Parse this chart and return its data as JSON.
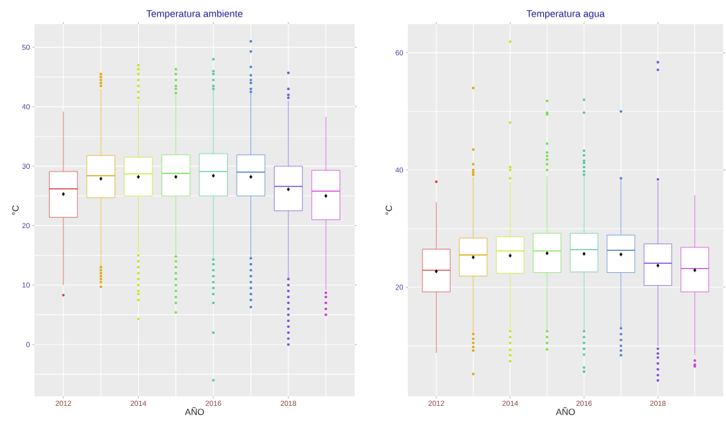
{
  "chart_data": [
    {
      "type": "box",
      "title": "Temperatura ambiente",
      "xlabel": "AÑO",
      "ylabel": "°C",
      "categories": [
        "2012",
        null,
        "2014",
        null,
        "2016",
        null,
        "2018",
        null
      ],
      "colors": [
        "#d93a3a",
        "#e0a800",
        "#c4e61a",
        "#70e04d",
        "#52c79a",
        "#4d7fd1",
        "#7a4dd6",
        "#cc33d6"
      ],
      "ylim": [
        -8.7,
        53.9
      ],
      "yticks": [
        0,
        10,
        20,
        30,
        40,
        50
      ],
      "grid": true,
      "boxes": [
        {
          "low": 10,
          "q1": 21.4,
          "median": 26.2,
          "q3": 29.1,
          "high": 39.2,
          "mean": 25.3,
          "outliers": [
            8.3
          ]
        },
        {
          "low": 13.2,
          "q1": 24.7,
          "median": 28.4,
          "q3": 31.8,
          "high": 43,
          "mean": 27.9,
          "outliers": [
            43.5,
            44,
            44.5,
            45,
            45.5,
            9.7,
            10.5,
            11,
            11.5,
            12,
            12.5,
            13
          ]
        },
        {
          "low": 15.5,
          "q1": 25.0,
          "median": 28.7,
          "q3": 31.5,
          "high": 41,
          "mean": 28.2,
          "outliers": [
            41.5,
            42.5,
            43.5,
            44.5,
            45.5,
            46.3,
            47,
            15,
            14,
            13,
            12,
            11,
            10,
            9,
            8.5,
            7.5,
            4.3
          ]
        },
        {
          "low": 15,
          "q1": 25.0,
          "median": 28.8,
          "q3": 31.9,
          "high": 42,
          "mean": 28.2,
          "outliers": [
            42.3,
            43,
            43.5,
            44.5,
            45.5,
            46.3,
            14.8,
            14,
            13,
            12,
            11,
            10,
            9,
            8,
            7,
            5.4
          ]
        },
        {
          "low": 14.5,
          "q1": 25.0,
          "median": 29.1,
          "q3": 32.1,
          "high": 43,
          "mean": 28.4,
          "outliers": [
            43,
            43.5,
            44.5,
            45.5,
            46,
            48,
            14.3,
            13.5,
            12.5,
            11.5,
            10.5,
            9.5,
            8.5,
            7,
            2,
            -6
          ]
        },
        {
          "low": 14.7,
          "q1": 25.0,
          "median": 29.0,
          "q3": 31.9,
          "high": 42.3,
          "mean": 28.2,
          "outliers": [
            42.5,
            43,
            44,
            44.5,
            45.3,
            46.7,
            49.3,
            51,
            14.5,
            13.5,
            12.5,
            11.5,
            10.5,
            9.5,
            8.5,
            7.5,
            6.3
          ]
        },
        {
          "low": 11.2,
          "q1": 22.5,
          "median": 26.6,
          "q3": 30.0,
          "high": 41,
          "mean": 26.1,
          "outliers": [
            41.5,
            42,
            43,
            45.7,
            11,
            10,
            9,
            8,
            7,
            6,
            5,
            4,
            3,
            2,
            1,
            0
          ]
        },
        {
          "low": 9.2,
          "q1": 21.0,
          "median": 25.8,
          "q3": 29.3,
          "high": 38.3,
          "mean": 25.0,
          "outliers": [
            8.7,
            8,
            7,
            6,
            5
          ]
        }
      ]
    },
    {
      "type": "box",
      "title": "Temperatura agua",
      "xlabel": "AÑO",
      "ylabel": "°C",
      "categories": [
        "2012",
        null,
        "2014",
        null,
        "2016",
        null,
        "2018",
        null
      ],
      "colors": [
        "#d93a3a",
        "#e0a800",
        "#c4e61a",
        "#70e04d",
        "#52c79a",
        "#4d7fd1",
        "#7a4dd6",
        "#cc33d6"
      ],
      "ylim": [
        1.4,
        64.9
      ],
      "yticks": [
        20,
        40,
        60
      ],
      "grid": true,
      "boxes": [
        {
          "low": 8.8,
          "q1": 19.2,
          "median": 22.9,
          "q3": 26.5,
          "high": 34.5,
          "mean": 22.7,
          "outliers": [
            38.0
          ]
        },
        {
          "low": 12.1,
          "q1": 21.9,
          "median": 25.5,
          "q3": 28.4,
          "high": 38.8,
          "mean": 25.1,
          "outliers": [
            39.2,
            39.6,
            40,
            41,
            43.5,
            54,
            12,
            11.2,
            10.5,
            9.8,
            9.2,
            5.2
          ]
        },
        {
          "low": 12.8,
          "q1": 22.4,
          "median": 26.2,
          "q3": 28.6,
          "high": 38,
          "mean": 25.4,
          "outliers": [
            38.6,
            40,
            40.5,
            48.1,
            61.9,
            12.5,
            11.5,
            10.5,
            9.3,
            8.4,
            7.4
          ]
        },
        {
          "low": 12.7,
          "q1": 22.5,
          "median": 26.2,
          "q3": 29.2,
          "high": 39.0,
          "mean": 25.8,
          "outliers": [
            40,
            41,
            41.8,
            42.4,
            43,
            44.5,
            49.5,
            49.8,
            51.8,
            12.5,
            11.5,
            10.5,
            9.4
          ]
        },
        {
          "low": 12.7,
          "q1": 22.6,
          "median": 26.4,
          "q3": 29.2,
          "high": 39,
          "mean": 25.7,
          "outliers": [
            39.2,
            39.8,
            40.5,
            41.2,
            41.6,
            42.5,
            43.3,
            49.8,
            52,
            12.5,
            11.5,
            10.5,
            9.5,
            8.5,
            6.3,
            5.6
          ]
        },
        {
          "low": 13.1,
          "q1": 22.5,
          "median": 26.3,
          "q3": 28.9,
          "high": 38.5,
          "mean": 25.6,
          "outliers": [
            38.6,
            50.0,
            13,
            12,
            11,
            10,
            9.2,
            8.4
          ]
        },
        {
          "low": 9.9,
          "q1": 20.3,
          "median": 24.1,
          "q3": 27.4,
          "high": 38,
          "mean": 23.7,
          "outliers": [
            38.4,
            57.1,
            58.4,
            9.5,
            8.7,
            8,
            7,
            6,
            5,
            4.1
          ]
        },
        {
          "low": 8.4,
          "q1": 19.2,
          "median": 23.2,
          "q3": 26.8,
          "high": 35.7,
          "mean": 22.9,
          "outliers": [
            7.5,
            6.8,
            6.5
          ]
        }
      ]
    }
  ]
}
